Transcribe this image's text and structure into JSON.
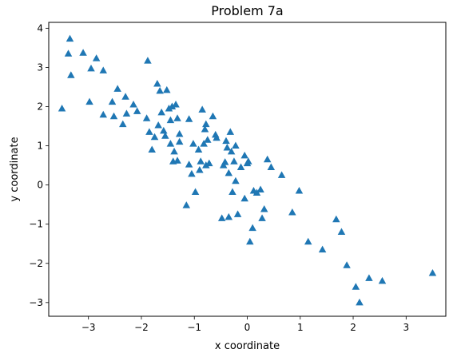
{
  "chart_data": {
    "type": "scatter",
    "title": "Problem 7a",
    "xlabel": "x coordinate",
    "ylabel": "y coordinate",
    "xlim": [
      -3.75,
      3.75
    ],
    "ylim": [
      -3.35,
      4.15
    ],
    "xticks": [
      -3,
      -2,
      -1,
      0,
      1,
      2,
      3
    ],
    "yticks": [
      -3,
      -2,
      -1,
      0,
      1,
      2,
      3,
      4
    ],
    "tick_labels_x": [
      "−3",
      "−2",
      "−1",
      "0",
      "1",
      "2",
      "3"
    ],
    "tick_labels_y": [
      "−3",
      "−2",
      "−1",
      "0",
      "1",
      "2",
      "3",
      "4"
    ],
    "marker": "triangle",
    "marker_color": "#1f77b4",
    "grid": false,
    "legend": "none",
    "points": [
      [
        -3.5,
        1.95
      ],
      [
        -3.35,
        3.73
      ],
      [
        -3.38,
        3.35
      ],
      [
        -3.33,
        2.8
      ],
      [
        -3.1,
        3.37
      ],
      [
        -2.95,
        2.97
      ],
      [
        -2.98,
        2.12
      ],
      [
        -2.85,
        3.23
      ],
      [
        -2.72,
        2.92
      ],
      [
        -2.72,
        1.79
      ],
      [
        -2.55,
        2.12
      ],
      [
        -2.52,
        1.75
      ],
      [
        -2.45,
        2.45
      ],
      [
        -2.35,
        1.55
      ],
      [
        -2.3,
        2.25
      ],
      [
        -2.28,
        1.82
      ],
      [
        -2.15,
        2.05
      ],
      [
        -2.08,
        1.88
      ],
      [
        -1.9,
        1.7
      ],
      [
        -1.88,
        3.17
      ],
      [
        -1.85,
        1.35
      ],
      [
        -1.8,
        0.9
      ],
      [
        -1.75,
        1.22
      ],
      [
        -1.7,
        2.58
      ],
      [
        -1.68,
        1.52
      ],
      [
        -1.65,
        2.4
      ],
      [
        -1.62,
        1.85
      ],
      [
        -1.58,
        1.38
      ],
      [
        -1.55,
        1.25
      ],
      [
        -1.52,
        2.42
      ],
      [
        -1.48,
        1.95
      ],
      [
        -1.45,
        1.65
      ],
      [
        -1.45,
        1.05
      ],
      [
        -1.42,
        2.0
      ],
      [
        -1.4,
        0.6
      ],
      [
        -1.38,
        0.85
      ],
      [
        -1.35,
        2.05
      ],
      [
        -1.32,
        0.62
      ],
      [
        -1.32,
        1.7
      ],
      [
        -1.28,
        1.3
      ],
      [
        -1.28,
        1.1
      ],
      [
        -1.15,
        -0.52
      ],
      [
        -1.1,
        1.68
      ],
      [
        -1.1,
        0.52
      ],
      [
        -1.05,
        0.28
      ],
      [
        -1.02,
        1.05
      ],
      [
        -0.98,
        -0.18
      ],
      [
        -0.92,
        0.9
      ],
      [
        -0.9,
        0.38
      ],
      [
        -0.88,
        0.6
      ],
      [
        -0.85,
        1.92
      ],
      [
        -0.82,
        1.05
      ],
      [
        -0.8,
        1.42
      ],
      [
        -0.78,
        1.55
      ],
      [
        -0.78,
        0.5
      ],
      [
        -0.75,
        1.15
      ],
      [
        -0.72,
        0.55
      ],
      [
        -0.65,
        1.75
      ],
      [
        -0.6,
        1.28
      ],
      [
        -0.58,
        1.2
      ],
      [
        -0.48,
        -0.85
      ],
      [
        -0.45,
        0.5
      ],
      [
        -0.42,
        0.58
      ],
      [
        -0.4,
        1.12
      ],
      [
        -0.38,
        0.95
      ],
      [
        -0.35,
        -0.82
      ],
      [
        -0.35,
        0.3
      ],
      [
        -0.32,
        1.35
      ],
      [
        -0.3,
        0.85
      ],
      [
        -0.28,
        -0.18
      ],
      [
        -0.25,
        0.6
      ],
      [
        -0.22,
        1.0
      ],
      [
        -0.22,
        0.1
      ],
      [
        -0.18,
        -0.75
      ],
      [
        -0.12,
        0.45
      ],
      [
        -0.05,
        -0.35
      ],
      [
        -0.05,
        0.75
      ],
      [
        0.0,
        0.55
      ],
      [
        0.02,
        0.6
      ],
      [
        0.05,
        -1.45
      ],
      [
        0.1,
        -1.1
      ],
      [
        0.12,
        -0.15
      ],
      [
        0.18,
        -0.2
      ],
      [
        0.25,
        -0.12
      ],
      [
        0.28,
        -0.85
      ],
      [
        0.32,
        -0.62
      ],
      [
        0.38,
        0.65
      ],
      [
        0.45,
        0.45
      ],
      [
        0.65,
        0.25
      ],
      [
        0.85,
        -0.7
      ],
      [
        0.98,
        -0.15
      ],
      [
        1.15,
        -1.45
      ],
      [
        1.42,
        -1.65
      ],
      [
        1.68,
        -0.88
      ],
      [
        1.78,
        -1.2
      ],
      [
        1.88,
        -2.05
      ],
      [
        2.05,
        -2.6
      ],
      [
        2.12,
        -3.0
      ],
      [
        2.3,
        -2.38
      ],
      [
        2.55,
        -2.45
      ],
      [
        3.5,
        -2.25
      ]
    ]
  }
}
